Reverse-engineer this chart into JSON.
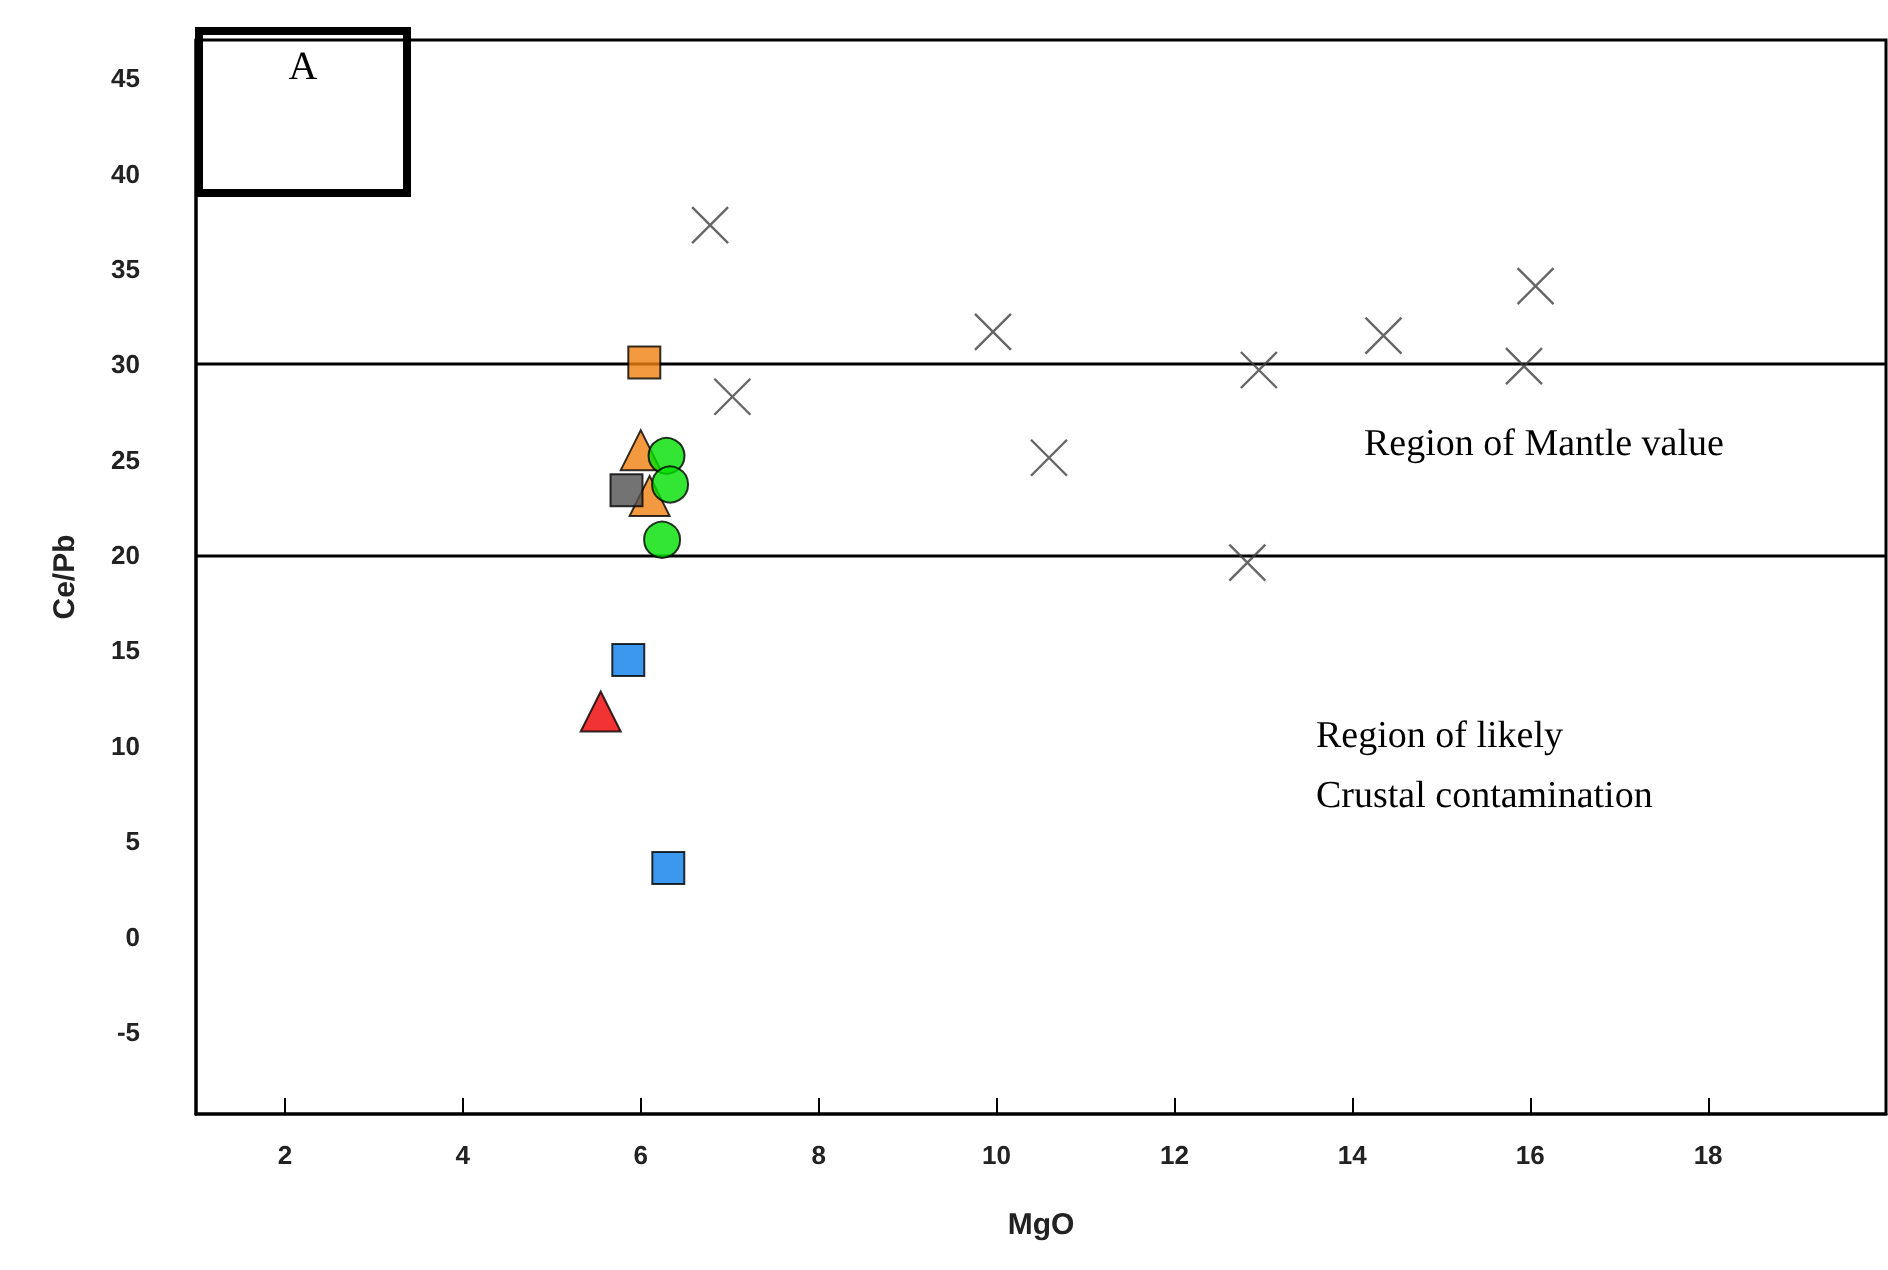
{
  "chart_data": {
    "type": "scatter",
    "xlabel": "MgO",
    "ylabel": "Ce/Pb",
    "xlim": [
      1,
      20
    ],
    "xticks": [
      2,
      4,
      6,
      8,
      10,
      12,
      14,
      16,
      18
    ],
    "ylim": [
      -9.3,
      47
    ],
    "yticks": [
      -5,
      0,
      5,
      10,
      15,
      20,
      25,
      30,
      35,
      40,
      45
    ],
    "grid": false,
    "series": [
      {
        "color": "#404040",
        "marker": "cross",
        "x": [
          6.78,
          7.03,
          9.96,
          10.59,
          12.95,
          12.82,
          14.35,
          15.93,
          16.06
        ],
        "values": [
          37.3,
          28.3,
          31.7,
          25.1,
          29.7,
          19.6,
          31.5,
          29.9,
          34.1
        ]
      },
      {
        "color": "#f07f10",
        "marker": "square",
        "x": [
          6.04
        ],
        "values": [
          30.1
        ]
      },
      {
        "color": "#f07f10",
        "marker": "triangle",
        "x": [
          6.0,
          6.1
        ],
        "values": [
          25.5,
          23.1
        ]
      },
      {
        "color": "#505050",
        "marker": "square",
        "x": [
          5.84
        ],
        "values": [
          23.4
        ]
      },
      {
        "color": "#00e000",
        "marker": "circle",
        "x": [
          6.29,
          6.33,
          6.24
        ],
        "values": [
          25.2,
          23.7,
          20.8
        ]
      },
      {
        "color": "#0a7ee8",
        "marker": "square",
        "x": [
          5.86,
          6.31
        ],
        "values": [
          14.5,
          3.6
        ]
      },
      {
        "color": "#ee0000",
        "marker": "triangle",
        "x": [
          5.55
        ],
        "values": [
          11.8
        ]
      }
    ],
    "ref_lines": [
      {
        "axis": "y",
        "value": 30,
        "color": "#000000"
      },
      {
        "axis": "y",
        "value": 20,
        "color": "#000000"
      }
    ],
    "annotations": [
      "A",
      "Region of Mantle value",
      "Region of likely\nCrustal contamination"
    ]
  }
}
